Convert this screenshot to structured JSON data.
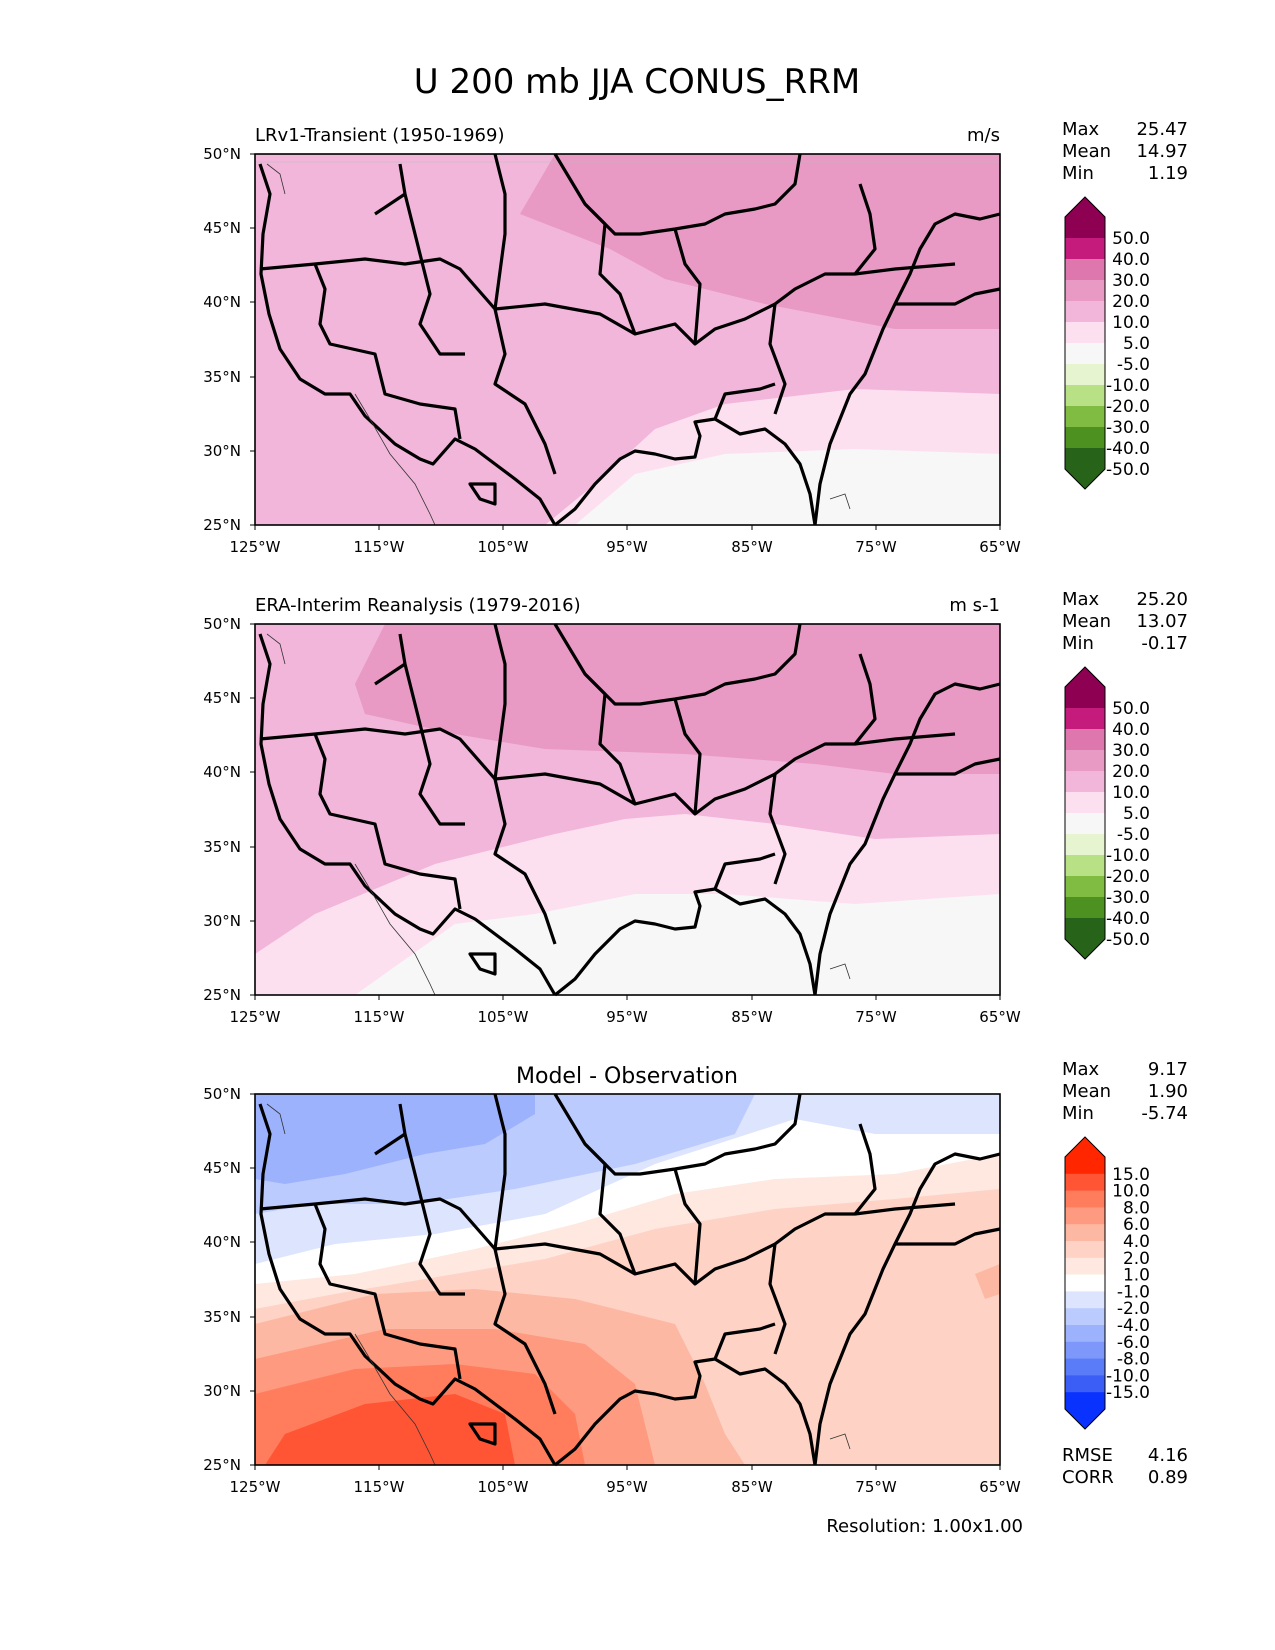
{
  "figure": {
    "title": "U 200 mb JJA CONUS_RRM",
    "resolution_text": "Resolution: 1.00x1.00"
  },
  "axes": {
    "lat_ticks": [
      "50°N",
      "45°N",
      "40°N",
      "35°N",
      "30°N",
      "25°N"
    ],
    "lon_ticks": [
      "125°W",
      "115°W",
      "105°W",
      "95°W",
      "85°W",
      "75°W",
      "65°W"
    ]
  },
  "stat_labels": {
    "max": "Max",
    "mean": "Mean",
    "min": "Min",
    "rmse": "RMSE",
    "corr": "CORR"
  },
  "panels": [
    {
      "left_title": "LRv1-Transient (1950-1969)",
      "center_title": "",
      "units": "m/s",
      "stats": {
        "max": "25.47",
        "mean": "14.97",
        "min": "1.19"
      },
      "colorbar_labels": [
        "50.0",
        "40.0",
        "30.0",
        "20.0",
        "10.0",
        "5.0",
        "-5.0",
        "-10.0",
        "-20.0",
        "-30.0",
        "-40.0",
        "-50.0"
      ],
      "colorbar_colors": [
        "#8e0152",
        "#c51b7d",
        "#de77ae",
        "#e899c4",
        "#f1b6da",
        "#fde0ef",
        "#f7f7f7",
        "#e6f5d0",
        "#b8e186",
        "#7fbc41",
        "#4d9221",
        "#276419"
      ]
    },
    {
      "left_title": "ERA-Interim Reanalysis (1979-2016)",
      "center_title": "",
      "units": "m s-1",
      "stats": {
        "max": "25.20",
        "mean": "13.07",
        "min": "-0.17"
      },
      "colorbar_labels": [
        "50.0",
        "40.0",
        "30.0",
        "20.0",
        "10.0",
        "5.0",
        "-5.0",
        "-10.0",
        "-20.0",
        "-30.0",
        "-40.0",
        "-50.0"
      ],
      "colorbar_colors": [
        "#8e0152",
        "#c51b7d",
        "#de77ae",
        "#e899c4",
        "#f1b6da",
        "#fde0ef",
        "#f7f7f7",
        "#e6f5d0",
        "#b8e186",
        "#7fbc41",
        "#4d9221",
        "#276419"
      ]
    },
    {
      "left_title": "",
      "center_title": "Model - Observation",
      "units": "",
      "stats": {
        "max": "9.17",
        "mean": "1.90",
        "min": "-5.74",
        "rmse": "4.16",
        "corr": "0.89"
      },
      "colorbar_labels": [
        "15.0",
        "10.0",
        "8.0",
        "6.0",
        "4.0",
        "2.0",
        "1.0",
        "-1.0",
        "-2.0",
        "-4.0",
        "-6.0",
        "-8.0",
        "-10.0",
        "-15.0"
      ],
      "colorbar_colors": [
        "#ff2600",
        "#ff5535",
        "#ff7c5c",
        "#fe9a80",
        "#fdb8a3",
        "#fed2c4",
        "#fee8e0",
        "#ffffff",
        "#dde4fe",
        "#bccbfd",
        "#9cb2fc",
        "#7d98fa",
        "#5a7cf8",
        "#3a5ef6",
        "#0a32ff"
      ]
    }
  ]
}
